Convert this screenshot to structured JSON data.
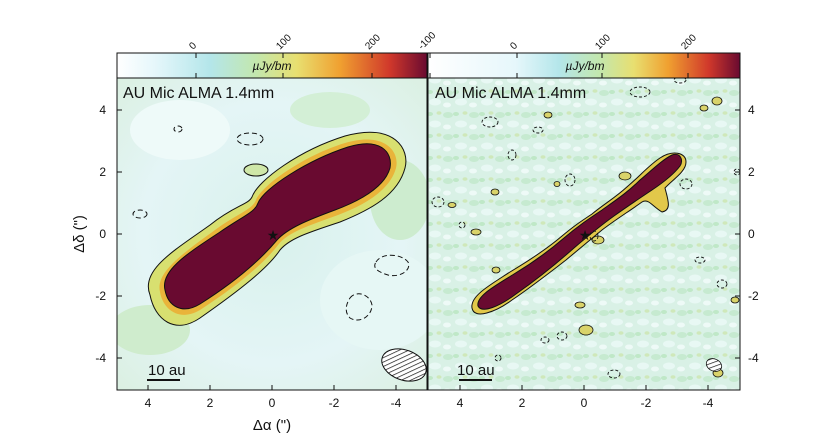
{
  "chart_data": [
    {
      "type": "heatmap",
      "title": "AU Mic ALMA 1.4mm",
      "xlabel": "Δα (\")",
      "ylabel": "Δδ (\")",
      "xlim": [
        5,
        -5
      ],
      "ylim": [
        -5,
        5
      ],
      "x_ticks": [
        "4",
        "2",
        "0",
        "-2",
        "-4"
      ],
      "y_ticks": [
        "4",
        "2",
        "0",
        "-2",
        "-4"
      ],
      "colorbar": {
        "label": "µJy/bm",
        "ticks": [
          "0",
          "100",
          "200"
        ],
        "range": [
          -80,
          250
        ],
        "colors": [
          "#ffffff",
          "#e6f7fb",
          "#b4e6ea",
          "#b9e4b0",
          "#e2e07c",
          "#f0a030",
          "#d0382b",
          "#690a30"
        ]
      },
      "star": {
        "x": 0,
        "y": 0
      },
      "disk": {
        "position_angle_deg": 128.5,
        "extent": [
          -4,
          4
        ]
      },
      "scale_bar": {
        "label": "10 au",
        "length_arcsec": 1.03
      },
      "beam": {
        "x": -4.2,
        "y": -4.2,
        "major": 1.4,
        "minor": 0.9
      }
    },
    {
      "type": "heatmap",
      "title": "AU Mic ALMA 1.4mm",
      "xlabel": "",
      "ylabel": "",
      "xlim": [
        5,
        -5
      ],
      "ylim": [
        -5,
        5
      ],
      "x_ticks": [
        "4",
        "2",
        "0",
        "-2",
        "-4"
      ],
      "y_ticks": [
        "4",
        "2",
        "0",
        "-2",
        "-4"
      ],
      "colorbar": {
        "label": "µJy/bm",
        "ticks": [
          "-100",
          "0",
          "100",
          "200"
        ],
        "range": [
          -110,
          250
        ],
        "colors": [
          "#ffffff",
          "#e6f7fb",
          "#b4e6ea",
          "#b9e4b0",
          "#e2e07c",
          "#f0a030",
          "#d0382b",
          "#690a30"
        ]
      },
      "star": {
        "x": 0,
        "y": 0
      },
      "disk": {
        "position_angle_deg": 128.5,
        "extent": [
          -3.1,
          3.9
        ]
      },
      "scale_bar": {
        "label": "10 au",
        "length_arcsec": 1.03
      },
      "beam": {
        "x": -4.1,
        "y": -4.2,
        "major": 0.6,
        "minor": 0.4
      }
    }
  ]
}
